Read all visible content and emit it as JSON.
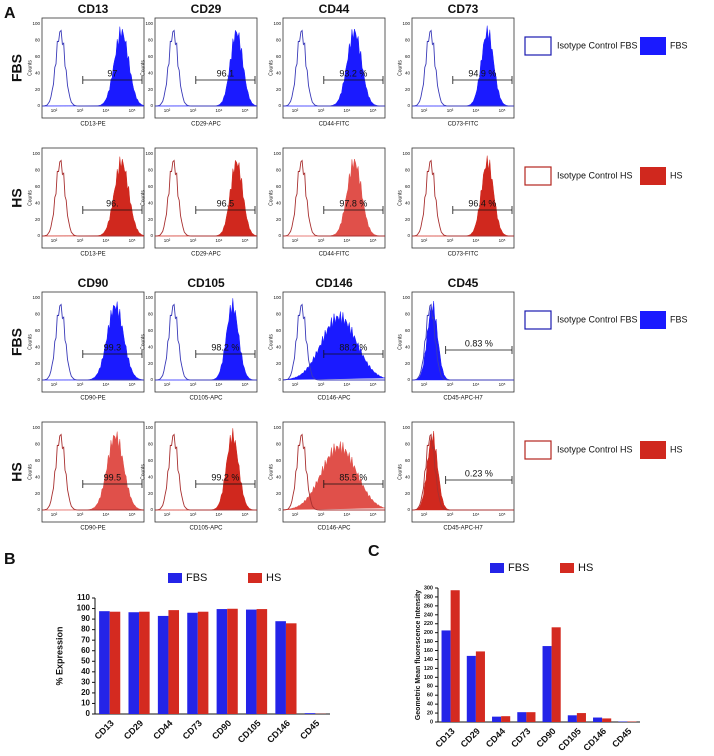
{
  "flow": {
    "panel_label": "A",
    "markers": [
      "CD13",
      "CD29",
      "CD44",
      "CD73",
      "CD90",
      "CD105",
      "CD146",
      "CD45"
    ],
    "axis_labels": [
      "CD13-PE",
      "CD29-APC",
      "CD44-FITC",
      "CD73-FITC",
      "CD90-PE",
      "CD105-APC",
      "CD146-APC",
      "CD45-APC-H7"
    ],
    "y_label": "Counts",
    "yticks": [
      0,
      20,
      40,
      60,
      80,
      100
    ],
    "xticks": [
      "10²",
      "10³",
      "10⁴",
      "10⁵"
    ],
    "rows": [
      {
        "label": "FBS",
        "percents": [
          "97",
          "96.1",
          "93.2 %",
          "94.9 %"
        ]
      },
      {
        "label": "HS",
        "percents": [
          "96.",
          "96.5",
          "97.8 %",
          "96.4 %"
        ]
      },
      {
        "label": "FBS",
        "percents": [
          "99.3",
          "98.2 %",
          "88.2 %",
          "0.83 %"
        ]
      },
      {
        "label": "HS",
        "percents": [
          "99.5",
          "99.2 %",
          "85.5 %",
          "0.23 %"
        ]
      }
    ],
    "legends": [
      {
        "isotype": "Isotype Control FBS",
        "sample": "FBS"
      },
      {
        "isotype": "Isotype Control HS",
        "sample": "HS"
      },
      {
        "isotype": "Isotype Control FBS",
        "sample": "FBS"
      },
      {
        "isotype": "Isotype Control HS",
        "sample": "HS"
      }
    ]
  },
  "chart_data": [
    {
      "type": "bar",
      "panel_label": "B",
      "y_label": "% Expression",
      "categories": [
        "CD13",
        "CD29",
        "CD44",
        "CD73",
        "CD90",
        "CD105",
        "CD146",
        "CD45"
      ],
      "series": [
        {
          "name": "FBS",
          "color": "#2424e8",
          "values": [
            97.5,
            96.5,
            93,
            96,
            99.5,
            99,
            88,
            0.8
          ]
        },
        {
          "name": "HS",
          "color": "#d42a20",
          "values": [
            97,
            97,
            98.5,
            97,
            99.8,
            99.5,
            86,
            0.2
          ]
        }
      ],
      "ylim": [
        0,
        110
      ],
      "yticks": [
        0,
        10,
        20,
        30,
        40,
        50,
        60,
        70,
        80,
        90,
        100,
        110
      ]
    },
    {
      "type": "bar",
      "panel_label": "C",
      "y_label": "Geometric Mean fluorescence Intensity",
      "categories": [
        "CD13",
        "CD29",
        "CD44",
        "CD73",
        "CD90",
        "CD105",
        "CD146",
        "CD45"
      ],
      "series": [
        {
          "name": "FBS",
          "color": "#2424e8",
          "values": [
            205,
            148,
            12,
            22,
            170,
            15,
            10,
            1
          ]
        },
        {
          "name": "HS",
          "color": "#d42a20",
          "values": [
            295,
            158,
            13,
            22,
            212,
            20,
            8,
            1
          ]
        }
      ],
      "ylim": [
        0,
        300
      ],
      "yticks": [
        0,
        20,
        40,
        60,
        80,
        100,
        120,
        140,
        160,
        180,
        200,
        220,
        240,
        260,
        280,
        300
      ]
    }
  ]
}
